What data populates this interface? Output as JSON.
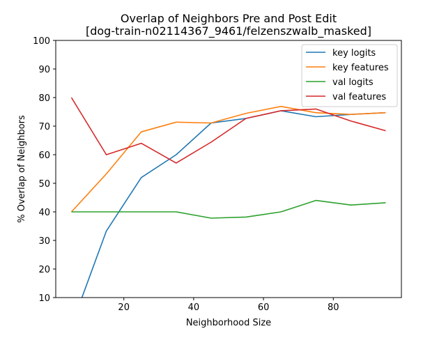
{
  "chart_data": {
    "type": "line",
    "title_line1": "Overlap of Neighbors Pre and Post Edit",
    "title_line2": "[dog-train-n02114367_9461/felzenszwalb_masked]",
    "xlabel": "Neighborhood Size",
    "ylabel": "% Overlap of Neighbors",
    "xlim": [
      0.5,
      99.5
    ],
    "ylim": [
      10,
      100
    ],
    "xticks": [
      20,
      40,
      60,
      80
    ],
    "yticks": [
      10,
      20,
      30,
      40,
      50,
      60,
      70,
      80,
      90,
      100
    ],
    "grid": false,
    "legend_position": "upper right",
    "x": [
      5,
      15,
      25,
      35,
      45,
      55,
      65,
      75,
      85,
      95
    ],
    "series": [
      {
        "name": "key logits",
        "color": "#1f77b4",
        "values": [
          0,
          33.3,
          52.0,
          60.0,
          71.1,
          72.7,
          75.4,
          73.3,
          74.1,
          74.7
        ]
      },
      {
        "name": "key features",
        "color": "#ff7f0e",
        "values": [
          40.0,
          53.3,
          68.0,
          71.4,
          71.1,
          74.5,
          76.9,
          74.7,
          74.1,
          74.7
        ]
      },
      {
        "name": "val logits",
        "color": "#2ca02c",
        "values": [
          40.0,
          40.0,
          40.0,
          40.0,
          37.8,
          38.2,
          40.0,
          44.0,
          42.4,
          43.2
        ]
      },
      {
        "name": "val features",
        "color": "#d62728",
        "values": [
          80.0,
          60.0,
          64.0,
          57.1,
          64.4,
          72.7,
          75.4,
          76.0,
          71.8,
          68.4
        ]
      }
    ]
  }
}
